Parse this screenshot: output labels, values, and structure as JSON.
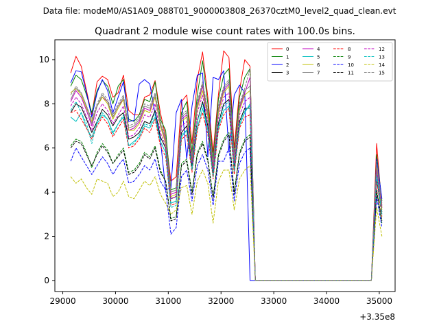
{
  "figure": {
    "suptitle": "Data file: modeM0/AS1A09_088T01_9000003808_26370cztM0_level2_quad_clean.evt",
    "title": "Quadrant 2 module wise count rates with 100.0s bins."
  },
  "chart_data": {
    "type": "line",
    "title": "Quadrant 2 module wise count rates with 100.0s bins.",
    "xlabel": "",
    "ylabel": "",
    "x_offset_label": "+3.35e8",
    "xlim": [
      28850,
      35300
    ],
    "ylim": [
      -0.5,
      10.9
    ],
    "xticks": [
      29000,
      30000,
      31000,
      32000,
      33000,
      34000,
      35000
    ],
    "xtick_labels": [
      "29000",
      "30000",
      "31000",
      "32000",
      "33000",
      "34000",
      "35000"
    ],
    "yticks": [
      0,
      2,
      4,
      6,
      8,
      10
    ],
    "ytick_labels": [
      "0",
      "2",
      "4",
      "6",
      "8",
      "10"
    ],
    "grid": false,
    "legend_position": "top-right",
    "legend_columns": 4,
    "x": [
      29150,
      29250,
      29350,
      29450,
      29550,
      29650,
      29750,
      29850,
      29950,
      30050,
      30150,
      30250,
      30350,
      30450,
      30550,
      30650,
      30750,
      30850,
      30950,
      31050,
      31150,
      31250,
      31350,
      31450,
      31550,
      31650,
      31750,
      31850,
      31950,
      32050,
      32150,
      32250,
      32350,
      32450,
      32550,
      32650,
      32750,
      32850,
      32950,
      33050,
      33150,
      33250,
      33350,
      33450,
      33550,
      33650,
      33750,
      33850,
      33950,
      34050,
      34150,
      34250,
      34350,
      34450,
      34550,
      34650,
      34750,
      34850,
      34950,
      35050
    ],
    "series": [
      {
        "name": "0",
        "color": "#ff0000",
        "dash": "solid",
        "values": [
          9.4,
          10.15,
          9.7,
          8.6,
          7.5,
          9.0,
          9.25,
          9.1,
          8.3,
          8.5,
          9.3,
          7.7,
          7.5,
          7.5,
          8.3,
          8.4,
          9.05,
          7.6,
          6.5,
          4.5,
          4.7,
          8.1,
          8.4,
          6.2,
          9.1,
          10.35,
          8.3,
          5.8,
          8.4,
          10.4,
          10.1,
          6.0,
          8.6,
          10.0,
          9.7,
          0.0,
          0.0,
          0.0,
          0.0,
          0.0,
          0.0,
          0.0,
          0.0,
          0.0,
          0.0,
          0.0,
          0.0,
          0.0,
          0.0,
          0.0,
          0.0,
          0.0,
          0.0,
          0.0,
          0.0,
          0.0,
          0.0,
          0.0,
          6.2,
          3.3
        ]
      },
      {
        "name": "1",
        "color": "#008000",
        "dash": "solid",
        "values": [
          8.8,
          9.3,
          9.1,
          8.4,
          7.6,
          8.6,
          9.05,
          8.8,
          8.0,
          8.8,
          9.1,
          7.3,
          7.2,
          7.5,
          8.2,
          8.1,
          9.0,
          7.3,
          6.8,
          4.1,
          4.2,
          7.6,
          8.1,
          5.8,
          8.4,
          9.95,
          8.0,
          5.5,
          8.2,
          9.3,
          9.6,
          5.7,
          8.3,
          9.2,
          9.6,
          0.0,
          0.0,
          0.0,
          0.0,
          0.0,
          0.0,
          0.0,
          0.0,
          0.0,
          0.0,
          0.0,
          0.0,
          0.0,
          0.0,
          0.0,
          0.0,
          0.0,
          0.0,
          0.0,
          0.0,
          0.0,
          0.0,
          0.0,
          5.7,
          3.6
        ]
      },
      {
        "name": "2",
        "color": "#0000ff",
        "dash": "solid",
        "values": [
          8.95,
          9.5,
          9.45,
          8.5,
          7.4,
          8.5,
          9.1,
          8.6,
          7.6,
          8.3,
          9.0,
          7.2,
          7.25,
          8.9,
          9.1,
          8.9,
          7.55,
          6.4,
          4.1,
          4.2,
          7.6,
          8.2,
          5.5,
          7.9,
          9.3,
          9.4,
          5.6,
          9.2,
          9.1,
          9.5,
          5.8,
          8.4,
          8.85,
          8.5,
          0.0,
          0.0,
          0.0,
          0.0,
          0.0,
          0.0,
          0.0,
          0.0,
          0.0,
          0.0,
          0.0,
          0.0,
          0.0,
          0.0,
          0.0,
          0.0,
          0.0,
          0.0,
          0.0,
          0.0,
          0.0,
          0.0,
          0.0,
          0.0,
          5.5,
          3.7
        ]
      },
      {
        "name": "3",
        "color": "#000000",
        "dash": "solid",
        "values": [
          7.6,
          8.0,
          7.85,
          7.3,
          6.7,
          7.2,
          7.75,
          7.5,
          7.0,
          7.4,
          7.6,
          6.4,
          6.5,
          6.7,
          7.2,
          7.1,
          7.7,
          6.5,
          6.0,
          3.7,
          3.8,
          6.7,
          7.0,
          5.2,
          7.2,
          8.1,
          7.0,
          4.9,
          7.1,
          8.0,
          8.2,
          5.1,
          7.2,
          7.8,
          7.8,
          0.0,
          0.0,
          0.0,
          0.0,
          0.0,
          0.0,
          0.0,
          0.0,
          0.0,
          0.0,
          0.0,
          0.0,
          0.0,
          0.0,
          0.0,
          0.0,
          0.0,
          0.0,
          0.0,
          0.0,
          0.0,
          0.0,
          0.0,
          4.6,
          3.1
        ]
      },
      {
        "name": "4",
        "color": "#bf00bf",
        "dash": "solid",
        "values": [
          8.1,
          8.6,
          8.3,
          7.7,
          7.0,
          7.9,
          8.3,
          8.1,
          7.4,
          7.9,
          8.2,
          6.8,
          6.9,
          7.2,
          7.8,
          7.7,
          8.3,
          7.0,
          6.3,
          3.9,
          4.0,
          7.3,
          7.5,
          5.5,
          7.9,
          8.8,
          7.5,
          5.2,
          7.7,
          8.6,
          8.9,
          5.5,
          7.8,
          8.5,
          9.2,
          0.0,
          0.0,
          0.0,
          0.0,
          0.0,
          0.0,
          0.0,
          0.0,
          0.0,
          0.0,
          0.0,
          0.0,
          0.0,
          0.0,
          0.0,
          0.0,
          0.0,
          0.0,
          0.0,
          0.0,
          0.0,
          0.0,
          0.0,
          5.1,
          3.4
        ]
      },
      {
        "name": "5",
        "color": "#00bfbf",
        "dash": "solid",
        "values": [
          7.4,
          7.2,
          7.6,
          6.9,
          6.5,
          7.1,
          7.5,
          7.3,
          6.7,
          7.1,
          7.4,
          6.1,
          6.3,
          6.5,
          7.0,
          6.9,
          7.4,
          6.3,
          5.8,
          3.5,
          3.6,
          6.5,
          6.8,
          5.0,
          6.9,
          7.8,
          6.8,
          4.7,
          6.9,
          7.7,
          7.9,
          4.9,
          7.0,
          7.6,
          8.0,
          0.0,
          0.0,
          0.0,
          0.0,
          0.0,
          0.0,
          0.0,
          0.0,
          0.0,
          0.0,
          0.0,
          0.0,
          0.0,
          0.0,
          0.0,
          0.0,
          0.0,
          0.0,
          0.0,
          0.0,
          0.0,
          0.0,
          0.0,
          4.9,
          3.0
        ]
      },
      {
        "name": "6",
        "color": "#bfbf00",
        "dash": "solid",
        "values": [
          8.5,
          8.7,
          8.4,
          7.8,
          7.2,
          7.9,
          8.3,
          8.0,
          7.3,
          7.8,
          8.2,
          6.8,
          6.8,
          7.1,
          7.7,
          7.6,
          8.3,
          7.0,
          6.2,
          3.8,
          3.9,
          7.2,
          7.4,
          5.4,
          7.8,
          8.6,
          7.4,
          5.1,
          7.6,
          8.5,
          8.8,
          5.4,
          7.7,
          8.4,
          8.6,
          0.0,
          0.0,
          0.0,
          0.0,
          0.0,
          0.0,
          0.0,
          0.0,
          0.0,
          0.0,
          0.0,
          0.0,
          0.0,
          0.0,
          0.0,
          0.0,
          0.0,
          0.0,
          0.0,
          0.0,
          0.0,
          0.0,
          0.0,
          5.2,
          3.2
        ]
      },
      {
        "name": "7",
        "color": "#808080",
        "dash": "solid",
        "values": [
          8.2,
          8.7,
          8.5,
          7.9,
          7.1,
          7.9,
          8.4,
          8.1,
          7.4,
          7.9,
          8.3,
          6.9,
          7.0,
          7.3,
          7.9,
          7.8,
          8.4,
          7.1,
          6.4,
          4.0,
          4.1,
          7.4,
          7.6,
          5.6,
          8.0,
          8.9,
          7.6,
          5.3,
          7.8,
          8.7,
          9.0,
          5.6,
          7.9,
          8.6,
          8.8,
          0.0,
          0.0,
          0.0,
          0.0,
          0.0,
          0.0,
          0.0,
          0.0,
          0.0,
          0.0,
          0.0,
          0.0,
          0.0,
          0.0,
          0.0,
          0.0,
          0.0,
          0.0,
          0.0,
          0.0,
          0.0,
          0.0,
          0.0,
          5.3,
          3.5
        ]
      },
      {
        "name": "8",
        "color": "#ff0000",
        "dash": "dashed",
        "values": [
          7.6,
          7.7,
          7.3,
          6.9,
          6.4,
          7.0,
          7.4,
          7.1,
          6.5,
          6.9,
          7.3,
          6.0,
          6.1,
          6.4,
          6.9,
          6.7,
          7.3,
          6.1,
          5.6,
          3.4,
          3.5,
          6.4,
          6.6,
          4.9,
          6.8,
          7.6,
          6.6,
          4.6,
          6.8,
          7.5,
          7.8,
          4.8,
          6.9,
          7.4,
          7.5,
          0.0,
          0.0,
          0.0,
          0.0,
          0.0,
          0.0,
          0.0,
          0.0,
          0.0,
          0.0,
          0.0,
          0.0,
          0.0,
          0.0,
          0.0,
          0.0,
          0.0,
          0.0,
          0.0,
          0.0,
          0.0,
          0.0,
          0.0,
          4.5,
          2.9
        ]
      },
      {
        "name": "9",
        "color": "#008000",
        "dash": "dashed",
        "values": [
          6.1,
          6.4,
          6.3,
          5.8,
          5.1,
          5.8,
          6.2,
          5.9,
          5.3,
          5.7,
          6.0,
          4.9,
          5.0,
          5.3,
          5.8,
          5.6,
          6.1,
          5.0,
          4.5,
          2.8,
          2.9,
          5.3,
          5.5,
          4.0,
          5.8,
          6.3,
          5.5,
          3.8,
          5.7,
          6.4,
          6.7,
          4.0,
          5.8,
          6.4,
          6.6,
          0.0,
          0.0,
          0.0,
          0.0,
          0.0,
          0.0,
          0.0,
          0.0,
          0.0,
          0.0,
          0.0,
          0.0,
          0.0,
          0.0,
          0.0,
          0.0,
          0.0,
          0.0,
          0.0,
          0.0,
          0.0,
          0.0,
          0.0,
          4.0,
          2.6
        ]
      },
      {
        "name": "10",
        "color": "#0000ff",
        "dash": "dashed",
        "values": [
          5.4,
          6.0,
          5.6,
          5.2,
          4.8,
          5.2,
          5.6,
          5.3,
          4.8,
          5.2,
          5.5,
          4.4,
          4.5,
          4.8,
          5.2,
          5.0,
          5.5,
          4.5,
          4.1,
          2.1,
          2.4,
          4.7,
          5.0,
          3.6,
          5.2,
          5.7,
          5.0,
          3.4,
          5.4,
          5.4,
          6.0,
          3.6,
          5.3,
          5.8,
          6.0,
          0.0,
          0.0,
          0.0,
          0.0,
          0.0,
          0.0,
          0.0,
          0.0,
          0.0,
          0.0,
          0.0,
          0.0,
          0.0,
          0.0,
          0.0,
          0.0,
          0.0,
          0.0,
          0.0,
          0.0,
          0.0,
          0.0,
          0.0,
          3.8,
          2.4
        ]
      },
      {
        "name": "11",
        "color": "#000000",
        "dash": "dashed",
        "values": [
          6.0,
          6.3,
          6.2,
          5.7,
          5.2,
          5.7,
          6.1,
          5.8,
          5.3,
          5.6,
          5.9,
          4.8,
          4.9,
          5.2,
          5.7,
          5.5,
          6.0,
          4.9,
          4.5,
          2.7,
          2.8,
          5.2,
          5.4,
          3.9,
          5.7,
          6.2,
          5.4,
          3.7,
          5.6,
          6.3,
          6.6,
          3.9,
          5.7,
          6.3,
          6.5,
          0.0,
          0.0,
          0.0,
          0.0,
          0.0,
          0.0,
          0.0,
          0.0,
          0.0,
          0.0,
          0.0,
          0.0,
          0.0,
          0.0,
          0.0,
          0.0,
          0.0,
          0.0,
          0.0,
          0.0,
          0.0,
          0.0,
          0.0,
          4.1,
          2.7
        ]
      },
      {
        "name": "12",
        "color": "#bf00bf",
        "dash": "dashed",
        "values": [
          7.9,
          8.3,
          8.0,
          7.4,
          6.8,
          7.6,
          8.0,
          7.7,
          7.1,
          7.5,
          7.9,
          6.5,
          6.6,
          6.9,
          7.5,
          7.4,
          8.0,
          6.7,
          6.1,
          3.7,
          3.8,
          7.0,
          7.2,
          5.3,
          7.6,
          8.4,
          7.2,
          5.0,
          7.4,
          8.3,
          8.5,
          5.3,
          7.5,
          8.1,
          8.3,
          0.0,
          0.0,
          0.0,
          0.0,
          0.0,
          0.0,
          0.0,
          0.0,
          0.0,
          0.0,
          0.0,
          0.0,
          0.0,
          0.0,
          0.0,
          0.0,
          0.0,
          0.0,
          0.0,
          0.0,
          0.0,
          0.0,
          0.0,
          5.0,
          3.3
        ]
      },
      {
        "name": "13",
        "color": "#00bfbf",
        "dash": "dashed",
        "values": [
          7.7,
          8.1,
          7.6,
          7.1,
          6.2,
          7.2,
          7.6,
          7.3,
          6.6,
          7.1,
          7.5,
          6.1,
          6.2,
          6.6,
          7.1,
          7.0,
          7.6,
          6.3,
          5.8,
          3.3,
          3.4,
          6.6,
          6.8,
          5.0,
          7.2,
          8.0,
          6.8,
          4.7,
          7.0,
          7.9,
          8.1,
          5.0,
          7.1,
          7.7,
          7.9,
          0.0,
          0.0,
          0.0,
          0.0,
          0.0,
          0.0,
          0.0,
          0.0,
          0.0,
          0.0,
          0.0,
          0.0,
          0.0,
          0.0,
          0.0,
          0.0,
          0.0,
          0.0,
          0.0,
          0.0,
          0.0,
          0.0,
          0.0,
          4.7,
          3.0
        ]
      },
      {
        "name": "14",
        "color": "#bfbf00",
        "dash": "dashed",
        "values": [
          4.7,
          4.4,
          4.6,
          4.2,
          3.9,
          4.6,
          4.5,
          4.4,
          3.8,
          4.0,
          4.5,
          3.8,
          3.7,
          4.1,
          4.5,
          4.3,
          4.7,
          3.9,
          3.5,
          3.0,
          3.2,
          4.2,
          4.3,
          3.0,
          4.5,
          5.0,
          4.4,
          2.6,
          4.5,
          5.0,
          5.0,
          3.2,
          4.6,
          5.0,
          5.2,
          0.0,
          0.0,
          0.0,
          0.0,
          0.0,
          0.0,
          0.0,
          0.0,
          0.0,
          0.0,
          0.0,
          0.0,
          0.0,
          0.0,
          0.0,
          0.0,
          0.0,
          0.0,
          0.0,
          0.0,
          0.0,
          0.0,
          0.0,
          3.3,
          2.0
        ]
      },
      {
        "name": "15",
        "color": "#808080",
        "dash": "dashed",
        "values": [
          8.4,
          8.8,
          8.5,
          7.9,
          7.3,
          8.0,
          8.5,
          8.2,
          7.5,
          8.0,
          8.4,
          7.0,
          7.1,
          7.4,
          8.0,
          7.9,
          8.5,
          7.2,
          6.5,
          4.0,
          4.1,
          7.5,
          7.7,
          5.6,
          8.1,
          9.0,
          7.7,
          5.3,
          7.9,
          8.8,
          9.1,
          5.6,
          8.0,
          8.7,
          9.6,
          0.0,
          0.0,
          0.0,
          0.0,
          0.0,
          0.0,
          0.0,
          0.0,
          0.0,
          0.0,
          0.0,
          0.0,
          0.0,
          0.0,
          0.0,
          0.0,
          0.0,
          0.0,
          0.0,
          0.0,
          0.0,
          0.0,
          0.0,
          5.4,
          3.4
        ]
      }
    ]
  }
}
